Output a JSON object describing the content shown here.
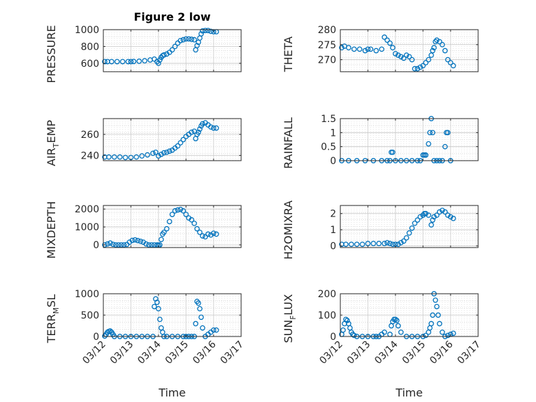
{
  "figure": {
    "title": "Figure 2 low",
    "xlabel": "Time"
  },
  "colors": {
    "series": "#0072BD",
    "axis": "#262626",
    "grid": "#d9d9d9",
    "background": "#ffffff"
  },
  "chart_data": [
    {
      "type": "scatter",
      "ylabel": "PRESSURE",
      "xlim": [
        0,
        5
      ],
      "ylim": [
        500,
        1000
      ],
      "yticks": [
        600,
        800,
        1000
      ],
      "xticks": [
        0,
        1,
        2,
        3,
        4,
        5
      ],
      "xticklabels": [],
      "grid": true,
      "x": [
        0.05,
        0.15,
        0.3,
        0.5,
        0.7,
        0.9,
        1.0,
        1.1,
        1.3,
        1.5,
        1.7,
        1.85,
        1.95,
        2.0,
        2.05,
        2.1,
        2.15,
        2.2,
        2.3,
        2.4,
        2.5,
        2.6,
        2.7,
        2.8,
        2.9,
        3.0,
        3.1,
        3.2,
        3.3,
        3.35,
        3.4,
        3.45,
        3.5,
        3.55,
        3.6,
        3.7,
        3.8,
        3.9,
        4.0,
        4.1
      ],
      "y": [
        620,
        620,
        620,
        620,
        620,
        620,
        620,
        622,
        625,
        630,
        640,
        650,
        620,
        600,
        640,
        670,
        690,
        700,
        710,
        730,
        760,
        800,
        840,
        870,
        880,
        890,
        890,
        885,
        880,
        760,
        810,
        850,
        900,
        950,
        985,
        990,
        990,
        980,
        975,
        975
      ]
    },
    {
      "type": "scatter",
      "ylabel": "THETA",
      "xlim": [
        0,
        5
      ],
      "ylim": [
        266,
        280
      ],
      "yticks": [
        270,
        275,
        280
      ],
      "xticks": [
        0,
        1,
        2,
        3,
        4,
        5
      ],
      "xticklabels": [],
      "grid": true,
      "x": [
        0.05,
        0.15,
        0.3,
        0.5,
        0.7,
        0.9,
        1.0,
        1.1,
        1.3,
        1.5,
        1.6,
        1.7,
        1.8,
        1.9,
        2.0,
        2.1,
        2.2,
        2.3,
        2.4,
        2.5,
        2.6,
        2.7,
        2.8,
        2.9,
        3.0,
        3.1,
        3.2,
        3.3,
        3.35,
        3.4,
        3.45,
        3.5,
        3.6,
        3.7,
        3.8,
        3.9,
        4.0,
        4.1
      ],
      "y": [
        274,
        274.5,
        274,
        273.5,
        273.5,
        273,
        273.5,
        273.5,
        273,
        273.5,
        277.5,
        276.5,
        275.5,
        274,
        272,
        271.5,
        271,
        270.5,
        271.5,
        271,
        270,
        267,
        267,
        267.5,
        268,
        269,
        270,
        271.5,
        273,
        274,
        276,
        276.5,
        276,
        275,
        273,
        270,
        269,
        268
      ]
    },
    {
      "type": "scatter",
      "ylabel": "AIR_TEMP",
      "xlim": [
        0,
        5
      ],
      "ylim": [
        235,
        275
      ],
      "yticks": [
        240,
        260
      ],
      "xticks": [
        0,
        1,
        2,
        3,
        4,
        5
      ],
      "xticklabels": [],
      "grid": true,
      "x": [
        0.05,
        0.2,
        0.4,
        0.6,
        0.8,
        1.0,
        1.2,
        1.4,
        1.6,
        1.8,
        1.9,
        2.0,
        2.1,
        2.2,
        2.3,
        2.4,
        2.5,
        2.6,
        2.7,
        2.8,
        2.9,
        3.0,
        3.1,
        3.2,
        3.3,
        3.35,
        3.4,
        3.45,
        3.5,
        3.55,
        3.6,
        3.7,
        3.8,
        3.9,
        4.0,
        4.1
      ],
      "y": [
        238.5,
        238.5,
        238.5,
        238.5,
        238,
        238,
        238.5,
        239.5,
        240.5,
        242,
        243,
        239.5,
        241,
        242.5,
        243,
        244,
        245,
        247,
        249,
        252,
        255,
        258,
        260,
        262,
        263,
        256,
        260,
        262,
        265,
        268,
        270,
        271,
        269,
        267,
        266,
        266
      ]
    },
    {
      "type": "scatter",
      "ylabel": "RAINFALL",
      "xlim": [
        0,
        5
      ],
      "ylim": [
        0,
        1.5
      ],
      "yticks": [
        0,
        0.5,
        1,
        1.5
      ],
      "xticks": [
        0,
        1,
        2,
        3,
        4,
        5
      ],
      "xticklabels": [],
      "grid": true,
      "x": [
        0.05,
        0.3,
        0.6,
        0.9,
        1.2,
        1.5,
        1.7,
        1.8,
        1.85,
        1.9,
        2.0,
        2.2,
        2.4,
        2.6,
        2.8,
        2.9,
        3.0,
        3.05,
        3.1,
        3.2,
        3.25,
        3.3,
        3.35,
        3.4,
        3.5,
        3.6,
        3.7,
        3.8,
        3.85,
        3.9,
        4.0
      ],
      "y": [
        0,
        0,
        0,
        0,
        0,
        0,
        0,
        0,
        0.3,
        0.3,
        0,
        0,
        0,
        0,
        0,
        0,
        0.2,
        0.2,
        0.2,
        0.6,
        1.0,
        1.5,
        1.0,
        0,
        0,
        0,
        0,
        0.5,
        1.0,
        1.0,
        0
      ]
    },
    {
      "type": "scatter",
      "ylabel": "MIXDEPTH",
      "xlim": [
        0,
        5
      ],
      "ylim": [
        -150,
        2200
      ],
      "yticks": [
        0,
        1000,
        2000
      ],
      "xticks": [
        0,
        1,
        2,
        3,
        4,
        5
      ],
      "xticklabels": [],
      "grid": true,
      "x": [
        0.05,
        0.15,
        0.25,
        0.35,
        0.45,
        0.55,
        0.65,
        0.75,
        0.85,
        0.95,
        1.05,
        1.15,
        1.25,
        1.35,
        1.45,
        1.55,
        1.65,
        1.75,
        1.85,
        1.95,
        2.0,
        2.05,
        2.1,
        2.15,
        2.2,
        2.3,
        2.4,
        2.5,
        2.6,
        2.7,
        2.8,
        2.9,
        3.0,
        3.1,
        3.2,
        3.3,
        3.4,
        3.5,
        3.6,
        3.7,
        3.8,
        3.9,
        4.0,
        4.1
      ],
      "y": [
        0,
        50,
        100,
        30,
        0,
        0,
        0,
        0,
        20,
        150,
        250,
        280,
        240,
        200,
        150,
        50,
        0,
        0,
        0,
        0,
        -20,
        0,
        300,
        600,
        700,
        900,
        1300,
        1700,
        1900,
        1950,
        1980,
        1900,
        1700,
        1500,
        1400,
        1200,
        900,
        700,
        500,
        450,
        600,
        550,
        650,
        600
      ]
    },
    {
      "type": "scatter",
      "ylabel": "H2OMIXRA",
      "xlim": [
        0,
        5
      ],
      "ylim": [
        -0.1,
        2.5
      ],
      "yticks": [
        0,
        1,
        2
      ],
      "xticks": [
        0,
        1,
        2,
        3,
        4,
        5
      ],
      "xticklabels": [],
      "grid": true,
      "x": [
        0.05,
        0.2,
        0.4,
        0.6,
        0.8,
        1.0,
        1.2,
        1.4,
        1.6,
        1.7,
        1.8,
        1.9,
        2.0,
        2.1,
        2.2,
        2.3,
        2.4,
        2.5,
        2.6,
        2.7,
        2.8,
        2.9,
        3.0,
        3.05,
        3.1,
        3.2,
        3.3,
        3.35,
        3.4,
        3.5,
        3.6,
        3.7,
        3.8,
        3.9,
        4.0,
        4.1
      ],
      "y": [
        0.1,
        0.1,
        0.1,
        0.1,
        0.1,
        0.15,
        0.15,
        0.15,
        0.15,
        0.2,
        0.15,
        0.1,
        0.1,
        0.1,
        0.2,
        0.3,
        0.5,
        0.8,
        1.1,
        1.4,
        1.6,
        1.8,
        1.9,
        2.0,
        2.0,
        1.9,
        1.3,
        1.6,
        1.8,
        1.9,
        2.1,
        2.2,
        2.1,
        1.9,
        1.8,
        1.7
      ]
    },
    {
      "type": "scatter",
      "ylabel": "TERR_MSL",
      "xlim": [
        0,
        5
      ],
      "ylim": [
        0,
        1000
      ],
      "yticks": [
        0,
        500,
        1000
      ],
      "xticks": [
        0,
        1,
        2,
        3,
        4,
        5
      ],
      "xticklabels": [
        "03/12",
        "03/13",
        "03/14",
        "03/15",
        "03/16",
        "03/17"
      ],
      "grid": true,
      "x": [
        0.05,
        0.1,
        0.15,
        0.2,
        0.25,
        0.3,
        0.35,
        0.4,
        0.6,
        0.8,
        1.0,
        1.2,
        1.4,
        1.6,
        1.8,
        1.85,
        1.9,
        1.95,
        2.0,
        2.05,
        2.1,
        2.15,
        2.2,
        2.3,
        2.5,
        2.7,
        2.9,
        3.0,
        3.1,
        3.2,
        3.3,
        3.35,
        3.4,
        3.45,
        3.5,
        3.55,
        3.6,
        3.7,
        3.8,
        3.9,
        4.0,
        4.1
      ],
      "y": [
        10,
        50,
        100,
        120,
        130,
        100,
        50,
        0,
        0,
        0,
        0,
        0,
        0,
        0,
        0,
        700,
        880,
        800,
        650,
        400,
        200,
        100,
        0,
        0,
        0,
        0,
        0,
        0,
        0,
        0,
        0,
        300,
        820,
        780,
        650,
        450,
        200,
        0,
        50,
        100,
        150,
        150
      ]
    },
    {
      "type": "scatter",
      "ylabel": "SUN_FLUX",
      "xlim": [
        0,
        5
      ],
      "ylim": [
        0,
        200
      ],
      "yticks": [
        0,
        100,
        200
      ],
      "xticks": [
        0,
        1,
        2,
        3,
        4,
        5
      ],
      "xticklabels": [
        "03/12",
        "03/13",
        "03/14",
        "03/15",
        "03/16",
        "03/17"
      ],
      "grid": true,
      "x": [
        0.05,
        0.1,
        0.15,
        0.2,
        0.25,
        0.3,
        0.35,
        0.4,
        0.45,
        0.5,
        0.6,
        0.8,
        1.0,
        1.2,
        1.3,
        1.4,
        1.5,
        1.6,
        1.8,
        1.85,
        1.9,
        1.95,
        2.0,
        2.05,
        2.1,
        2.2,
        2.4,
        2.6,
        2.8,
        3.0,
        3.1,
        3.2,
        3.25,
        3.3,
        3.35,
        3.4,
        3.45,
        3.5,
        3.55,
        3.6,
        3.7,
        3.8,
        3.9,
        4.0,
        4.1
      ],
      "y": [
        10,
        30,
        60,
        80,
        75,
        60,
        40,
        20,
        10,
        5,
        0,
        0,
        0,
        0,
        0,
        0,
        10,
        20,
        10,
        50,
        70,
        80,
        80,
        75,
        50,
        20,
        0,
        0,
        0,
        0,
        5,
        20,
        40,
        60,
        100,
        200,
        170,
        140,
        100,
        60,
        20,
        0,
        5,
        10,
        15
      ]
    }
  ]
}
